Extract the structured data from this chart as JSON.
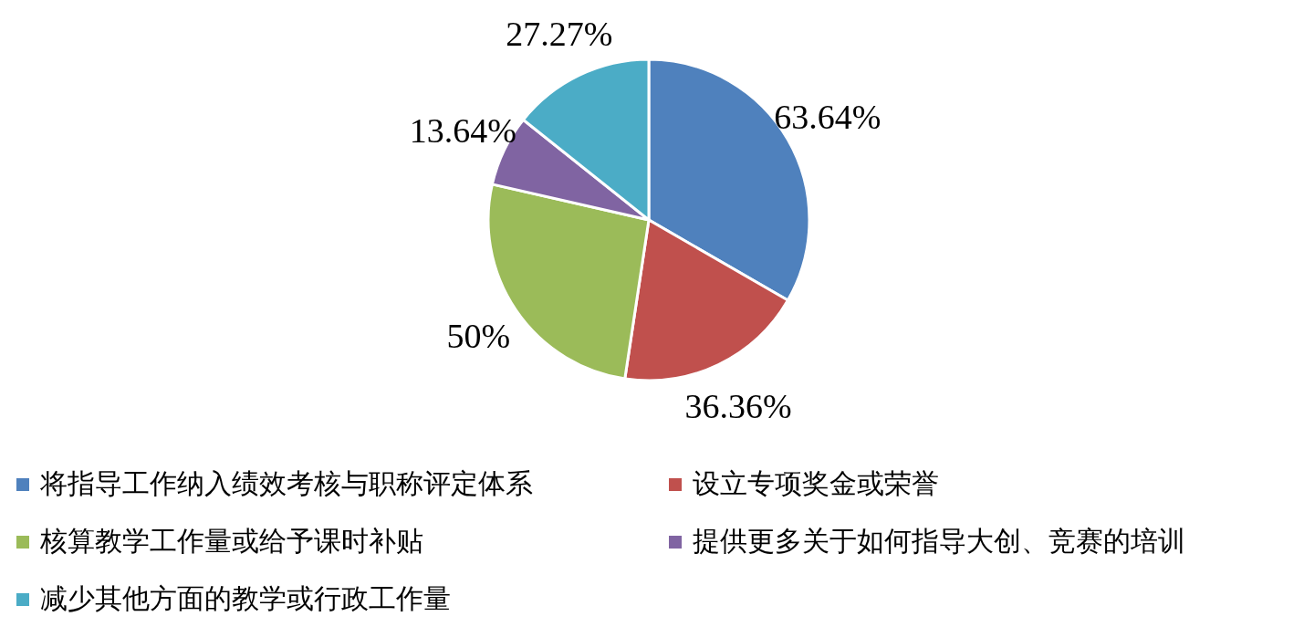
{
  "chart_data": {
    "type": "pie",
    "categories": [
      "将指导工作纳入绩效考核与职称评定体系",
      "设立专项奖金或荣誉",
      "核算教学工作量或给予课时补贴",
      "提供更多关于如何指导大创、竞赛的培训",
      "减少其他方面的教学或行政工作量"
    ],
    "values": [
      63.64,
      36.36,
      50,
      13.64,
      27.27
    ],
    "value_labels": [
      "63.64%",
      "36.36%",
      "50%",
      "13.64%",
      "27.27%"
    ],
    "colors": [
      "#4f81bd",
      "#c0504d",
      "#9bbb59",
      "#8064a2",
      "#4bacc6"
    ],
    "legend": "bottom"
  }
}
